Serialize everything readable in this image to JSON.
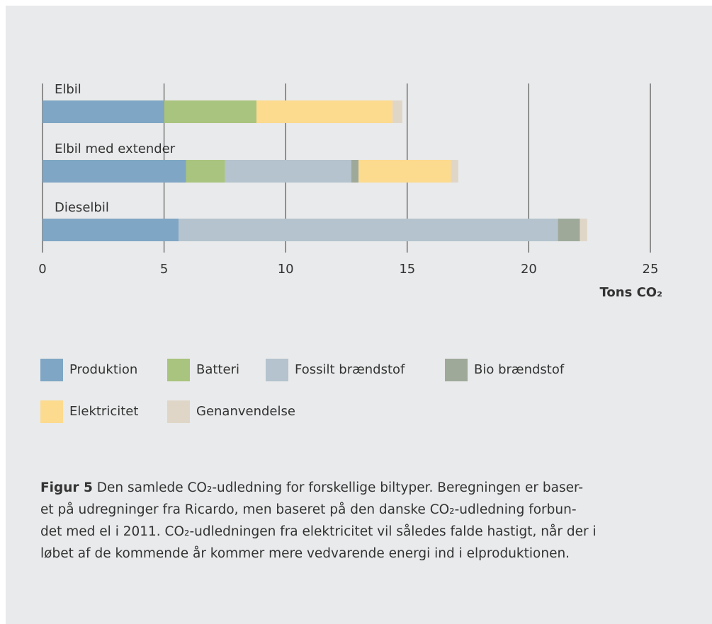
{
  "chart_data": {
    "type": "stacked-barh",
    "categories": [
      "Elbil",
      "Elbil med extender",
      "Dieselbil"
    ],
    "series": [
      {
        "name": "Produktion",
        "color": "#7fa6c4",
        "values": [
          5.0,
          5.9,
          5.6
        ]
      },
      {
        "name": "Batteri",
        "color": "#a9c47e",
        "values": [
          3.8,
          1.6,
          0
        ]
      },
      {
        "name": "Fossilt brændstof",
        "color": "#b4c3cd",
        "values": [
          0,
          5.2,
          15.6
        ]
      },
      {
        "name": "Bio brændstof",
        "color": "#9ea99a",
        "values": [
          0,
          0.3,
          0.9
        ]
      },
      {
        "name": "Elektricitet",
        "color": "#fcda8e",
        "values": [
          5.6,
          3.8,
          0
        ]
      },
      {
        "name": "Genanvendelse",
        "color": "#e0d6c8",
        "values": [
          0.4,
          0.3,
          0.3
        ]
      }
    ],
    "xlim": [
      0,
      25
    ],
    "xticks": [
      0,
      5,
      10,
      15,
      20,
      25
    ],
    "grid": true,
    "xlabel": "Tons CO₂",
    "caption": {
      "label": "Figur 5",
      "lines": [
        "Den samlede CO₂-udledning for forskellige biltyper. Beregningen er baser-",
        "et på udregninger fra Ricardo, men baseret på den danske CO₂-udledning forbun-",
        "det med el i 2011. CO₂-udledningen fra elektricitet vil således falde hastigt, når der i",
        "løbet af de kommende år kommer mere vedvarende energi ind i elproduktionen."
      ]
    }
  }
}
